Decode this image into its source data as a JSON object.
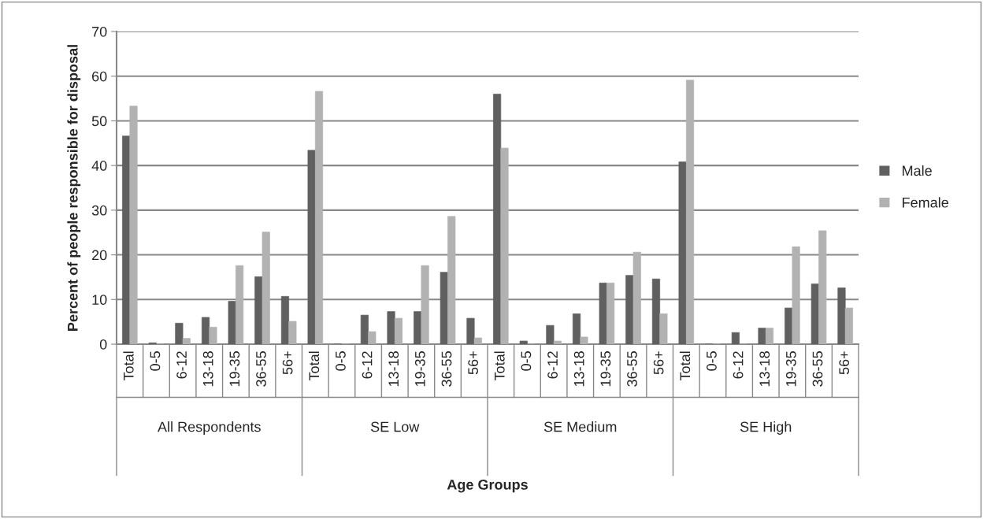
{
  "chart_data": {
    "type": "bar",
    "ylabel": "Percent of people responsible for disposal",
    "categories": [
      "Total",
      "0-5",
      "6-12",
      "13-18",
      "19-35",
      "36-55",
      "56+",
      "Total",
      "0-5",
      "6-12",
      "13-18",
      "19-35",
      "36-55",
      "56+",
      "Total",
      "0-5",
      "6-12",
      "13-18",
      "19-35",
      "36-55",
      "56+",
      "Total",
      "0-5",
      "6-12",
      "13-18",
      "19-35",
      "36-55",
      "56+"
    ],
    "series": [
      {
        "name": "Male",
        "color": "#606060",
        "values": [
          46.6,
          0.3,
          4.7,
          6.0,
          9.6,
          15.1,
          10.7,
          43.4,
          0,
          6.5,
          7.3,
          7.3,
          16.1,
          5.8,
          56.0,
          0.7,
          4.2,
          6.8,
          13.7,
          15.4,
          14.6,
          40.8,
          0,
          2.6,
          3.6,
          8.1,
          13.5,
          12.6
        ]
      },
      {
        "name": "Female",
        "color": "#b2b2b2",
        "values": [
          53.3,
          0,
          1.3,
          3.8,
          17.6,
          25.1,
          5.1,
          56.6,
          0,
          2.8,
          5.8,
          17.6,
          28.6,
          1.4,
          43.9,
          0,
          0.7,
          1.6,
          13.7,
          20.6,
          6.8,
          59.1,
          0,
          0,
          3.6,
          21.8,
          25.4,
          8.1
        ]
      }
    ],
    "annotations": [
      "All Respondents",
      "SE Low",
      "SE Medium",
      "SE High",
      "Age Groups"
    ],
    "ylim": [
      0,
      70
    ],
    "yticks": [
      0,
      10,
      20,
      30,
      40,
      50,
      60,
      70
    ],
    "grid": "y",
    "legend": "right"
  }
}
